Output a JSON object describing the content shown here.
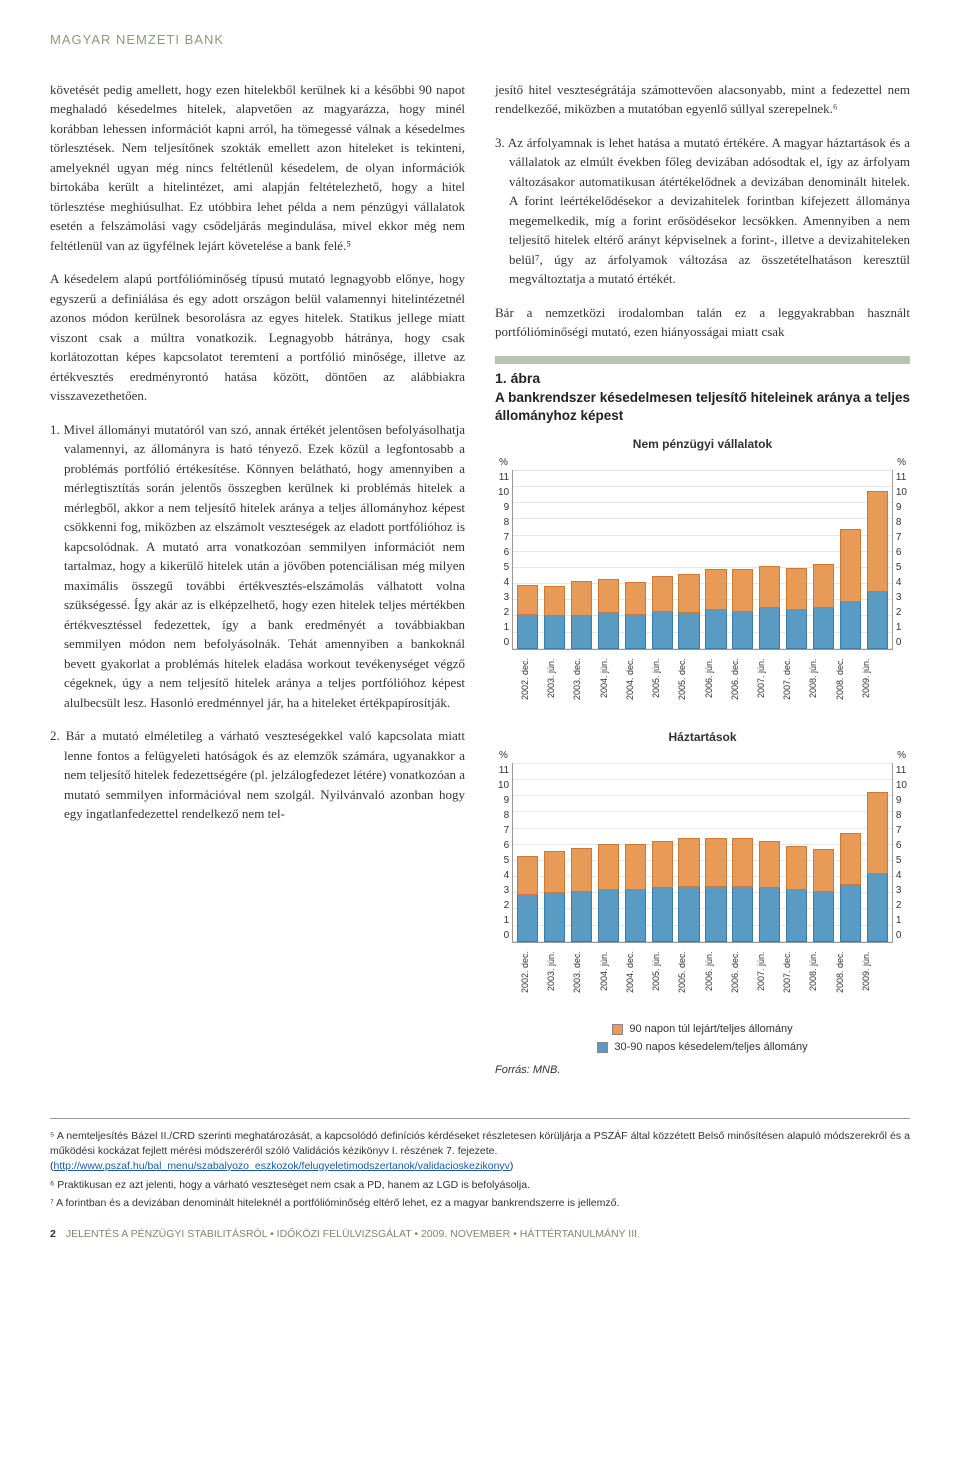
{
  "header": {
    "title": "MAGYAR NEMZETI BANK"
  },
  "left_column": {
    "p1": "követését pedig amellett, hogy ezen hitelekből kerülnek ki a későbbi 90 napot meghaladó késedelmes hitelek, alapvetően az magyarázza, hogy minél korábban lehessen információt kapni arról, ha tömegessé válnak a késedelmes törlesztések. Nem teljesítőnek szokták emellett azon hiteleket is tekinteni, amelyeknél ugyan még nincs feltétlenül késedelem, de olyan információk birtokába került a hitelintézet, ami alapján feltételezhető, hogy a hitel törlesztése meghiúsulhat. Ez utóbbira lehet példa a nem pénzügyi vállalatok esetén a felszámolási vagy csődeljárás megindulása, mivel ekkor még nem feltétlenül van az ügyfélnek lejárt követelése a bank felé.⁵",
    "p2": "A késedelem alapú portfólióminőség típusú mutató legnagyobb előnye, hogy egyszerű a definiálása és egy adott országon belül valamennyi hitelintézetnél azonos módon kerülnek besorolásra az egyes hitelek. Statikus jellege miatt viszont csak a múltra vonatkozik. Legnagyobb hátránya, hogy csak korlátozottan képes kapcsolatot teremteni a portfólió minősége, illetve az értékvesztés eredményrontó hatása között, döntően az alábbiakra visszavezethetően.",
    "item1": "1. Mivel állományi mutatóról van szó, annak értékét jelentősen befolyásolhatja valamennyi, az állományra is ható tényező. Ezek közül a legfontosabb a problémás portfólió értékesítése. Könnyen belátható, hogy amennyiben a mérlegtisztítás során jelentős összegben kerülnek ki problémás hitelek a mérlegből, akkor a nem teljesítő hitelek aránya a teljes állományhoz képest csökkenni fog, miközben az elszámolt veszteségek az eladott portfólióhoz is kapcsolódnak. A mutató arra vonatkozóan semmilyen információt nem tartalmaz, hogy a kikerülő hitelek után a jövőben potenciálisan még milyen maximális összegű további értékvesztés-elszámolás válhatott volna szükségessé. Így akár az is elképzelhető, hogy ezen hitelek teljes mértékben értékvesztéssel fedezettek, így a bank eredményét a továbbiakban semmilyen módon nem befolyásolnák. Tehát amennyiben a bankoknál bevett gyakorlat a problémás hitelek eladása workout tevékenységet végző cégeknek, úgy a nem teljesítő hitelek aránya a teljes portfólióhoz képest alulbecsült lesz. Hasonló eredménnyel jár, ha a hiteleket értékpapírosítják.",
    "item2": "2. Bár a mutató elméletileg a várható veszteségekkel való kapcsolata miatt lenne fontos a felügyeleti hatóságok és az elemzők számára, ugyanakkor a nem teljesítő hitelek fedezettségére (pl. jelzálogfedezet létére) vonatkozóan a mutató semmilyen információval nem szolgál. Nyilvánvaló azonban hogy egy ingatlanfedezettel rendelkező nem tel-"
  },
  "right_column": {
    "p1": "jesítő hitel veszteségrátája számottevően alacsonyabb, mint a fedezettel nem rendelkezőé, miközben a mutatóban egyenlő súllyal szerepelnek.⁶",
    "item3": "3. Az árfolyamnak is lehet hatása a mutató értékére. A magyar háztartások és a vállalatok az elmúlt években főleg devizában adósodtak el, így az árfolyam változásakor automatikusan átértékelődnek a devizában denominált hitelek. A forint leértékelődésekor a devizahitelek forintban kifejezett állománya megemelkedik, míg a forint erősödésekor lecsökken. Amennyiben a nem teljesítő hitelek eltérő arányt képviselnek a forint-, illetve a devizahiteleken belül⁷, úgy az árfolyamok változása az összetételhatáson keresztül megváltoztatja a mutató értékét.",
    "p2": "Bár a nemzetközi irodalomban talán ez a leggyakrabban használt portfólióminőségi mutató, ezen hiányosságai miatt csak"
  },
  "figure": {
    "num": "1. ábra",
    "title": "A bankrendszer késedelmesen teljesítő hiteleinek aránya a teljes állományhoz képest",
    "chart1": {
      "title": "Nem pénzügyi vállalatok",
      "ymax": 11,
      "yticks": [
        11,
        10,
        9,
        8,
        7,
        6,
        5,
        4,
        3,
        2,
        1,
        0
      ],
      "categories": [
        "2002. dec.",
        "2003. jún.",
        "2003. dec.",
        "2004. jún.",
        "2004. dec.",
        "2005. jún.",
        "2005. dec.",
        "2006. jún.",
        "2006. dec.",
        "2007. jún.",
        "2007. dec.",
        "2008. jún.",
        "2008. dec.",
        "2009. jún."
      ],
      "series_top": [
        1.8,
        1.9,
        2.2,
        2.1,
        2.0,
        2.2,
        2.4,
        2.5,
        2.6,
        2.6,
        2.6,
        2.7,
        4.5,
        6.2
      ],
      "series_bot": [
        2.1,
        2.0,
        2.0,
        2.2,
        2.1,
        2.3,
        2.2,
        2.4,
        2.3,
        2.5,
        2.4,
        2.5,
        2.9,
        3.5
      ],
      "color_top": "#e89b56",
      "color_bot": "#5a9bc4"
    },
    "chart2": {
      "title": "Háztartások",
      "ymax": 11,
      "yticks": [
        11,
        10,
        9,
        8,
        7,
        6,
        5,
        4,
        3,
        2,
        1,
        0
      ],
      "categories": [
        "2002. dec.",
        "2003. jún.",
        "2003. dec.",
        "2004. jún.",
        "2004. dec.",
        "2005. jún.",
        "2005. dec.",
        "2006. jún.",
        "2006. dec.",
        "2007. jún.",
        "2007. dec.",
        "2008. jún.",
        "2008. dec.",
        "2009. jún."
      ],
      "series_top": [
        2.4,
        2.6,
        2.7,
        2.8,
        2.8,
        2.9,
        3.0,
        3.0,
        3.0,
        2.9,
        2.7,
        2.6,
        3.2,
        5.0
      ],
      "series_bot": [
        2.9,
        3.0,
        3.1,
        3.2,
        3.2,
        3.3,
        3.4,
        3.4,
        3.4,
        3.3,
        3.2,
        3.1,
        3.5,
        4.2
      ],
      "color_top": "#e89b56",
      "color_bot": "#5a9bc4"
    },
    "legend": {
      "item1": {
        "color": "#e89b56",
        "label": "90 napon túl lejárt/teljes állomány"
      },
      "item2": {
        "color": "#5a9bc4",
        "label": "30-90 napos késedelem/teljes állomány"
      }
    },
    "source": "Forrás: MNB."
  },
  "footnotes": {
    "f5a": "⁵ A nemteljesítés Bázel II./CRD szerinti meghatározását, a kapcsolódó definíciós  kérdéseket részletesen körüljárja a PSZÁF által közzétett Belső minősítésen alapuló módszerekről és a működési kockázat fejlett mérési módszeréről szóló Validációs kézikönyv I. részének 7. fejezete.",
    "f5_link": "http://www.pszaf.hu/bal_menu/szabalyozo_eszkozok/felugyeletimodszertanok/validacioskezikonyv",
    "f6": "⁶ Praktikusan ez azt jelenti, hogy a várható veszteséget nem csak a PD, hanem az LGD is befolyásolja.",
    "f7": "⁷ A forintban és a devizában denominált hiteleknél a portfólióminőség eltérő lehet, ez a magyar bankrendszerre is jellemző."
  },
  "page_footer": {
    "num": "2",
    "text": "JELENTÉS A PÉNZÜGYI STABILITÁSRÓL • IDŐKÖZI FELÜLVIZSGÁLAT • 2009. NOVEMBER • HÁTTÉRTANULMÁNY III."
  }
}
